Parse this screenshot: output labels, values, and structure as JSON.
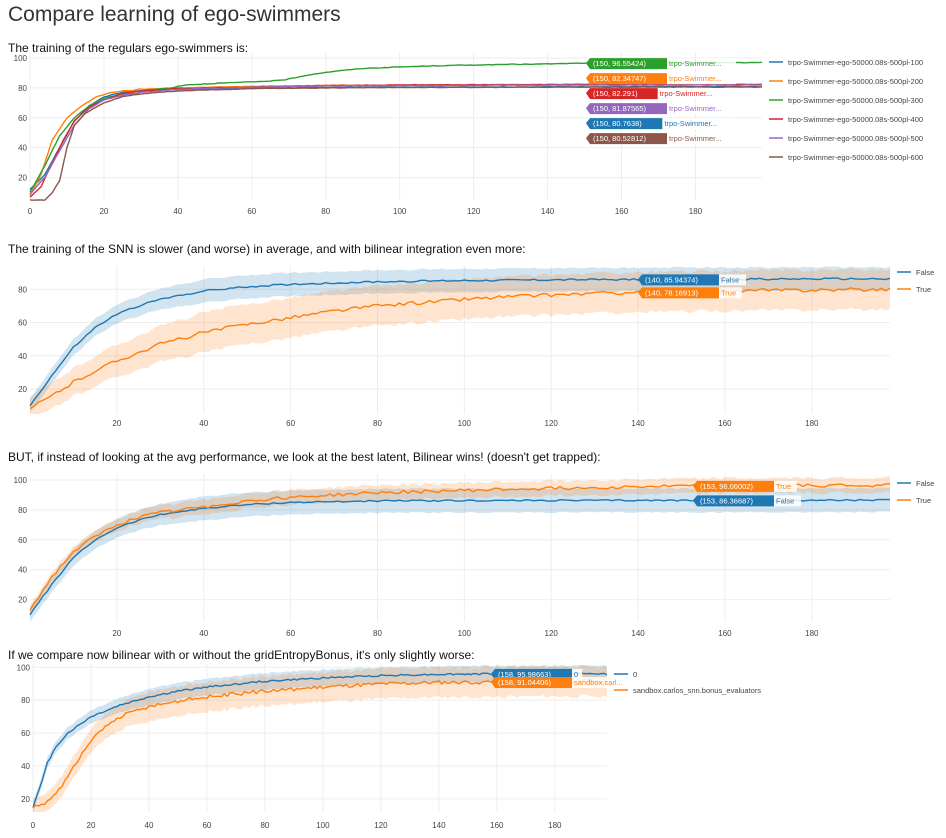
{
  "page": {
    "title": "Compare learning of ego-swimmers"
  },
  "captions": [
    "The training of the regulars ego-swimmers is:",
    "The training of the SNN is slower (and worse) in average, and with bilinear integration even more:",
    "BUT, if instead of looking at the avg performance, we look at the best latent, Bilinear wins! (doesn't get trapped):",
    "If we compare now bilinear with or without the gridEntropyBonus, it's only slightly worse:"
  ],
  "chart_data": [
    {
      "type": "line",
      "xlim": [
        0,
        198
      ],
      "ylim": [
        5,
        104
      ],
      "xticks": [
        0,
        20,
        40,
        60,
        80,
        100,
        120,
        140,
        160,
        180
      ],
      "yticks": [
        20,
        40,
        60,
        80,
        100
      ],
      "grid": true,
      "legend_position": "right",
      "series": [
        {
          "name": "trpo-Swimmer-ego-50000.08s-500pl-100",
          "color": "#1f77b4",
          "points": [
            [
              0,
              12
            ],
            [
              4,
              22
            ],
            [
              8,
              40
            ],
            [
              12,
              58
            ],
            [
              16,
              68
            ],
            [
              20,
              74
            ],
            [
              25,
              77
            ],
            [
              30,
              78
            ],
            [
              40,
              79
            ],
            [
              60,
              79.8
            ],
            [
              80,
              80.3
            ],
            [
              100,
              80.5
            ],
            [
              150,
              80.7638
            ],
            [
              198,
              80.8
            ]
          ],
          "hover": {
            "x": 150,
            "y": 80.7638,
            "value": "(150, 80.7638)",
            "label": "trpo-Swimmer..."
          }
        },
        {
          "name": "trpo-Swimmer-ego-50000.08s-500pl-200",
          "color": "#ff7f0e",
          "points": [
            [
              0,
              8
            ],
            [
              3,
              22
            ],
            [
              6,
              45
            ],
            [
              10,
              60
            ],
            [
              14,
              68
            ],
            [
              18,
              74
            ],
            [
              22,
              77
            ],
            [
              30,
              79
            ],
            [
              40,
              80
            ],
            [
              60,
              81
            ],
            [
              80,
              81.7
            ],
            [
              100,
              82
            ],
            [
              150,
              82.34747
            ],
            [
              198,
              82.4
            ]
          ],
          "hover": {
            "x": 150,
            "y": 82.34747,
            "value": "(150, 82.34747)",
            "label": "trpo-Swimmer..."
          }
        },
        {
          "name": "trpo-Swimmer-ego-50000.08s-500pl-300",
          "color": "#2ca02c",
          "points": [
            [
              0,
              10
            ],
            [
              4,
              28
            ],
            [
              8,
              48
            ],
            [
              12,
              60
            ],
            [
              16,
              68
            ],
            [
              20,
              73
            ],
            [
              25,
              76
            ],
            [
              30,
              78
            ],
            [
              38,
              80
            ],
            [
              42,
              82
            ],
            [
              50,
              83
            ],
            [
              60,
              84
            ],
            [
              68,
              85
            ],
            [
              76,
              89
            ],
            [
              82,
              91
            ],
            [
              90,
              93
            ],
            [
              100,
              94
            ],
            [
              110,
              94.8
            ],
            [
              120,
              95.3
            ],
            [
              130,
              95.7
            ],
            [
              140,
              96
            ],
            [
              150,
              96.55424
            ],
            [
              198,
              97
            ]
          ],
          "hover": {
            "x": 150,
            "y": 96.55424,
            "value": "(150, 96.55424)",
            "label": "trpo-Swimmer..."
          }
        },
        {
          "name": "trpo-Swimmer-ego-50000.08s-500pl-400",
          "color": "#d62728",
          "points": [
            [
              0,
              7
            ],
            [
              3,
              14
            ],
            [
              6,
              30
            ],
            [
              9,
              45
            ],
            [
              12,
              58
            ],
            [
              16,
              67
            ],
            [
              20,
              72
            ],
            [
              25,
              76
            ],
            [
              30,
              78
            ],
            [
              40,
              79.5
            ],
            [
              60,
              80.5
            ],
            [
              80,
              81.5
            ],
            [
              100,
              82
            ],
            [
              150,
              82.291
            ],
            [
              198,
              82.3
            ]
          ],
          "hover": {
            "x": 150,
            "y": 82.291,
            "value": "(150, 82.291)",
            "label": "trpo-Swimmer..."
          }
        },
        {
          "name": "trpo-Swimmer-ego-50000.08s-500pl-500",
          "color": "#9467bd",
          "points": [
            [
              0,
              9
            ],
            [
              4,
              20
            ],
            [
              8,
              38
            ],
            [
              12,
              55
            ],
            [
              16,
              66
            ],
            [
              20,
              72
            ],
            [
              25,
              75
            ],
            [
              30,
              77
            ],
            [
              40,
              79
            ],
            [
              60,
              80.5
            ],
            [
              80,
              81.3
            ],
            [
              100,
              81.6
            ],
            [
              150,
              81.87565
            ],
            [
              198,
              81.9
            ]
          ],
          "hover": {
            "x": 150,
            "y": 81.87565,
            "value": "(150, 81.87565)",
            "label": "trpo-Swimmer..."
          }
        },
        {
          "name": "trpo-Swimmer-ego-50000.08s-500pl-600",
          "color": "#8c564b",
          "points": [
            [
              0,
              5
            ],
            [
              4,
              5
            ],
            [
              6,
              10
            ],
            [
              8,
              18
            ],
            [
              10,
              40
            ],
            [
              12,
              55
            ],
            [
              15,
              63
            ],
            [
              20,
              70
            ],
            [
              25,
              74
            ],
            [
              30,
              76
            ],
            [
              40,
              78
            ],
            [
              60,
              79.5
            ],
            [
              80,
              80
            ],
            [
              100,
              80.3
            ],
            [
              150,
              80.52812
            ],
            [
              198,
              80.6
            ]
          ],
          "hover": {
            "x": 150,
            "y": 80.52812,
            "value": "(150, 80.52812)",
            "label": "trpo-Swimmer..."
          }
        }
      ]
    },
    {
      "type": "area",
      "xlim": [
        0,
        198
      ],
      "ylim": [
        5,
        94
      ],
      "xticks": [
        20,
        40,
        60,
        80,
        100,
        120,
        140,
        160,
        180
      ],
      "yticks": [
        20,
        40,
        60,
        80
      ],
      "grid": true,
      "legend_position": "right",
      "series": [
        {
          "name": "False",
          "color": "#1f77b4",
          "points": [
            [
              0,
              10
            ],
            [
              5,
              28
            ],
            [
              10,
              45
            ],
            [
              15,
              57
            ],
            [
              20,
              65
            ],
            [
              25,
              70
            ],
            [
              30,
              74
            ],
            [
              40,
              79
            ],
            [
              50,
              81.5
            ],
            [
              60,
              83
            ],
            [
              80,
              84.5
            ],
            [
              100,
              85.3
            ],
            [
              120,
              85.7
            ],
            [
              140,
              85.94374
            ],
            [
              160,
              86.1
            ],
            [
              198,
              86.3
            ]
          ],
          "band": 7,
          "hover": {
            "x": 140,
            "y": 85.94374,
            "value": "(140, 85.94374)",
            "label": "False"
          }
        },
        {
          "name": "True",
          "color": "#ff7f0e",
          "points": [
            [
              0,
              8
            ],
            [
              5,
              16
            ],
            [
              10,
              24
            ],
            [
              15,
              31
            ],
            [
              20,
              37
            ],
            [
              25,
              42
            ],
            [
              30,
              47
            ],
            [
              40,
              54
            ],
            [
              50,
              59
            ],
            [
              60,
              63
            ],
            [
              70,
              67
            ],
            [
              80,
              70
            ],
            [
              90,
              72
            ],
            [
              100,
              74
            ],
            [
              110,
              75.5
            ],
            [
              120,
              76.5
            ],
            [
              130,
              77.5
            ],
            [
              140,
              78.16913
            ],
            [
              160,
              79
            ],
            [
              180,
              79.6
            ],
            [
              198,
              80
            ]
          ],
          "band": 12,
          "hover": {
            "x": 140,
            "y": 78.16913,
            "value": "(140, 78.16913)",
            "label": "True"
          }
        }
      ]
    },
    {
      "type": "area",
      "xlim": [
        0,
        198
      ],
      "ylim": [
        5,
        104
      ],
      "xticks": [
        20,
        40,
        60,
        80,
        100,
        120,
        140,
        160,
        180
      ],
      "yticks": [
        20,
        40,
        60,
        80,
        100
      ],
      "grid": true,
      "legend_position": "right",
      "series": [
        {
          "name": "False",
          "color": "#1f77b4",
          "points": [
            [
              0,
              10
            ],
            [
              5,
              30
            ],
            [
              10,
              48
            ],
            [
              15,
              60
            ],
            [
              20,
              68
            ],
            [
              25,
              73
            ],
            [
              30,
              77
            ],
            [
              40,
              81
            ],
            [
              50,
              83.5
            ],
            [
              60,
              85
            ],
            [
              80,
              86
            ],
            [
              100,
              86.2
            ],
            [
              120,
              86.3
            ],
            [
              153,
              86.36687
            ],
            [
              198,
              86.5
            ]
          ],
          "band": 8,
          "hover": {
            "x": 153,
            "y": 86.36687,
            "value": "(153, 86.36687)",
            "label": "False"
          }
        },
        {
          "name": "True",
          "color": "#ff7f0e",
          "points": [
            [
              0,
              13
            ],
            [
              5,
              35
            ],
            [
              10,
              52
            ],
            [
              15,
              62
            ],
            [
              20,
              70
            ],
            [
              25,
              75
            ],
            [
              30,
              78
            ],
            [
              40,
              82
            ],
            [
              50,
              86
            ],
            [
              60,
              88.5
            ],
            [
              80,
              91.5
            ],
            [
              100,
              93
            ],
            [
              120,
              94.5
            ],
            [
              140,
              95.5
            ],
            [
              153,
              96.06002
            ],
            [
              198,
              96.5
            ]
          ],
          "band": 5,
          "hover": {
            "x": 153,
            "y": 96.06002,
            "value": "(153, 96.06002)",
            "label": "True"
          }
        }
      ]
    },
    {
      "type": "area",
      "xlim": [
        0,
        198
      ],
      "ylim": [
        12,
        102
      ],
      "xticks": [
        0,
        20,
        40,
        60,
        80,
        100,
        120,
        140,
        160,
        180
      ],
      "yticks": [
        20,
        40,
        60,
        80,
        100
      ],
      "grid": true,
      "legend_position": "right",
      "series": [
        {
          "name": "0",
          "color": "#1f77b4",
          "points": [
            [
              0,
              15
            ],
            [
              3,
              30
            ],
            [
              5,
              42
            ],
            [
              8,
              52
            ],
            [
              12,
              60
            ],
            [
              20,
              70
            ],
            [
              30,
              77
            ],
            [
              40,
              82
            ],
            [
              50,
              85.5
            ],
            [
              60,
              88
            ],
            [
              80,
              91.5
            ],
            [
              100,
              93.5
            ],
            [
              120,
              95
            ],
            [
              140,
              95.7
            ],
            [
              158,
              95.98663
            ],
            [
              198,
              96
            ]
          ],
          "band": 5,
          "hover": {
            "x": 158,
            "y": 95.98663,
            "value": "(158, 95.98663)",
            "label": "0"
          }
        },
        {
          "name": "sandbox.carlos_snn.bonus_evaluators",
          "color": "#ff7f0e",
          "points": [
            [
              0,
              15
            ],
            [
              5,
              18
            ],
            [
              10,
              28
            ],
            [
              15,
              42
            ],
            [
              20,
              55
            ],
            [
              25,
              64
            ],
            [
              30,
              70
            ],
            [
              40,
              76
            ],
            [
              50,
              79.5
            ],
            [
              60,
              82
            ],
            [
              80,
              85.5
            ],
            [
              100,
              88
            ],
            [
              120,
              89.8
            ],
            [
              140,
              90.7
            ],
            [
              158,
              91.04406
            ],
            [
              198,
              91.5
            ]
          ],
          "band": 9,
          "hover": {
            "x": 158,
            "y": 91.04406,
            "value": "(158, 91.04406)",
            "label": "sandbox.carl..."
          }
        }
      ]
    }
  ]
}
